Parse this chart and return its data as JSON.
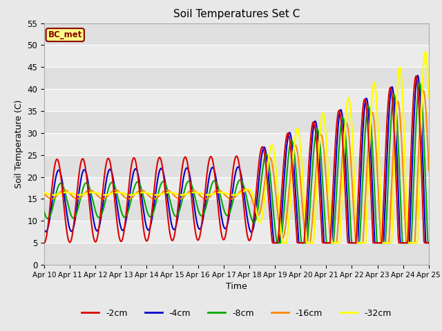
{
  "title": "Soil Temperatures Set C",
  "xlabel": "Time",
  "ylabel": "Soil Temperature (C)",
  "ylim": [
    0,
    55
  ],
  "annotation": "BC_met",
  "fig_bg": "#e8e8e8",
  "plot_bg": "#ebebeb",
  "series_colors": {
    "-2cm": "#dd0000",
    "-4cm": "#0000cc",
    "-8cm": "#00aa00",
    "-16cm": "#ff8800",
    "-32cm": "#ffff00"
  },
  "xtick_labels": [
    "Apr 10",
    "Apr 11",
    "Apr 12",
    "Apr 13",
    "Apr 14",
    "Apr 15",
    "Apr 16",
    "Apr 17",
    "Apr 18",
    "Apr 19",
    "Apr 20",
    "Apr 21",
    "Apr 22",
    "Apr 23",
    "Apr 24",
    "Apr 25"
  ],
  "ytick_vals": [
    0,
    5,
    10,
    15,
    20,
    25,
    30,
    35,
    40,
    45,
    50,
    55
  ],
  "band_colors": [
    "#e0e0e0",
    "#ebebeb"
  ]
}
